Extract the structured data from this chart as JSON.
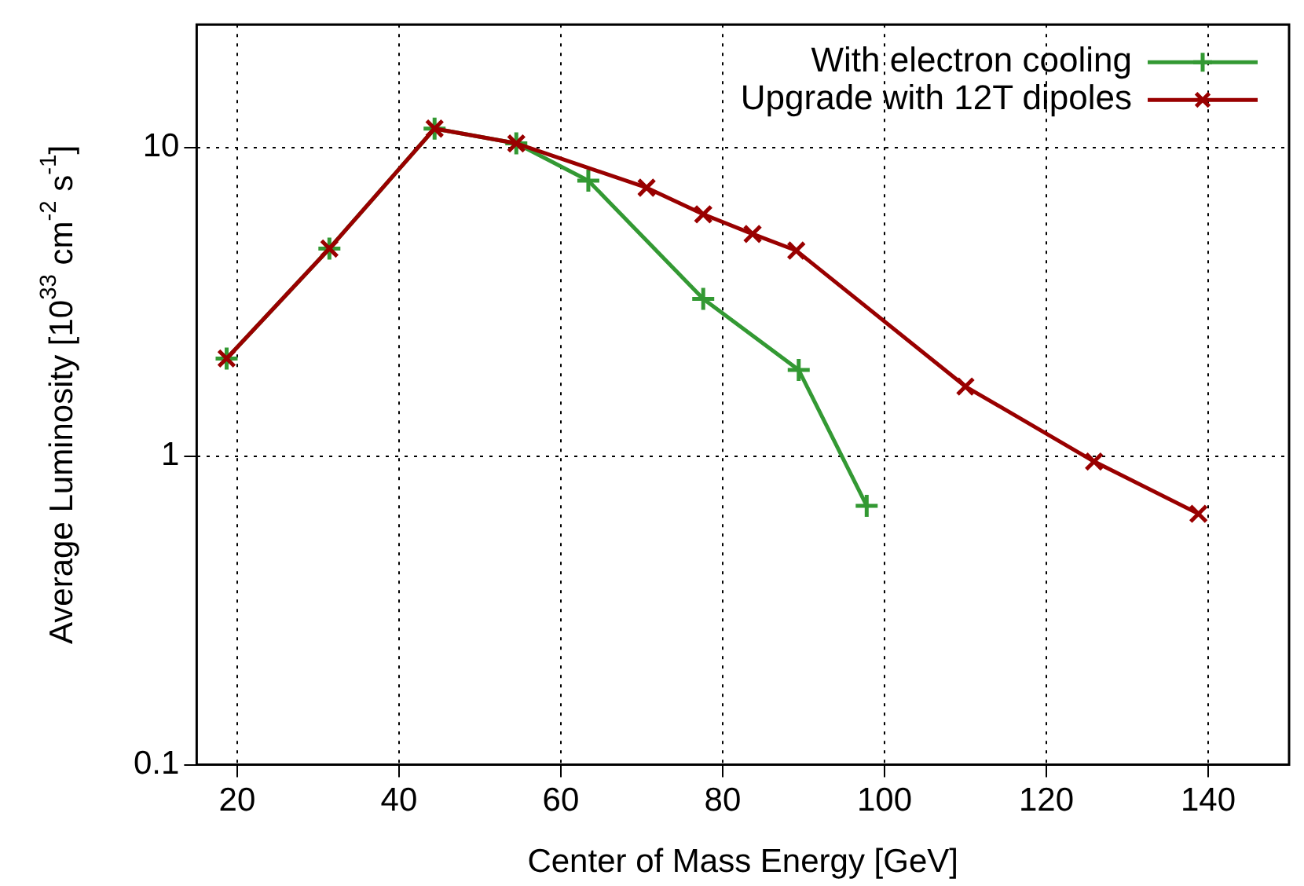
{
  "chart_data": {
    "type": "line",
    "xlabel": "Center of Mass Energy [GeV]",
    "ylabel": "Average Luminosity [10$^{33}$ cm$^{-2}$ s$^{-1}$]",
    "xlim": [
      15,
      150
    ],
    "xticks": [
      20,
      40,
      60,
      80,
      100,
      120,
      140
    ],
    "ylim": [
      0.1,
      25
    ],
    "yticks": [
      0.1,
      1,
      10
    ],
    "log": "y",
    "grid": true,
    "legend": "top right",
    "line_style": "solid",
    "series": [
      {
        "name": "With electron cooling",
        "color": "#339933",
        "marker": "plus",
        "x": [
          18.7,
          31.4,
          44.4,
          54.5,
          63.4,
          77.6,
          89.4,
          97.8
        ],
        "values": [
          2.07,
          4.7,
          11.5,
          10.3,
          7.8,
          3.23,
          1.9,
          0.69
        ]
      },
      {
        "name": "Upgrade with 12T dipoles",
        "color": "#990000",
        "marker": "cross",
        "x": [
          18.7,
          31.4,
          44.4,
          54.5,
          70.6,
          77.6,
          83.7,
          89.1,
          110,
          125.9,
          138.8
        ],
        "values": [
          2.07,
          4.7,
          11.5,
          10.3,
          7.4,
          6.07,
          5.24,
          4.63,
          1.68,
          0.96,
          0.65
        ]
      }
    ]
  }
}
